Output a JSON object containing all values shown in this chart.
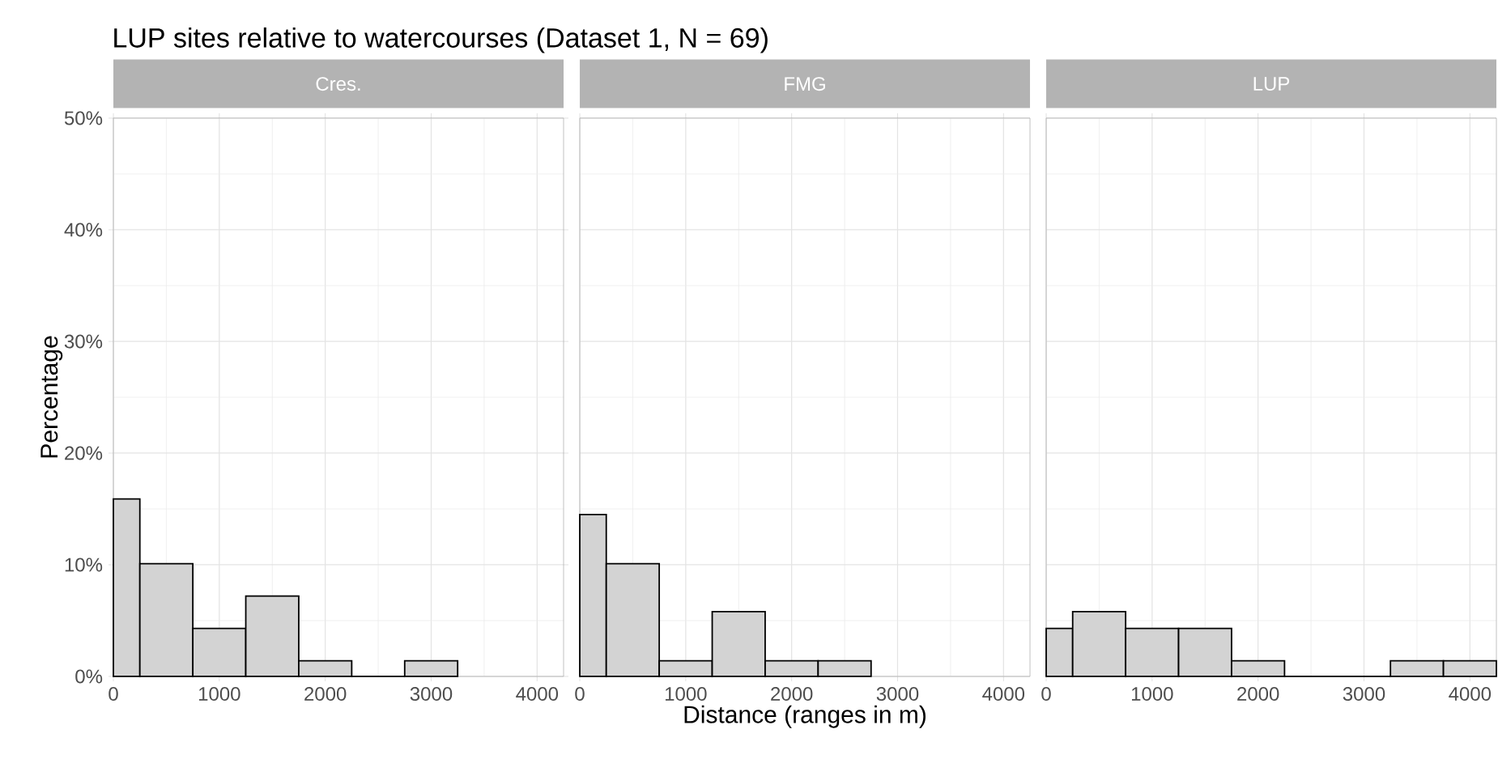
{
  "chart_data": [
    {
      "type": "histogram",
      "title": "LUP sites relative to watercourses (Dataset 1, N = 69)",
      "subtitle": "Cres.",
      "ylabel": "Percentage",
      "bins": [
        0,
        250,
        750,
        1250,
        1750,
        2250,
        2750,
        3250
      ],
      "values": [
        15.9,
        10.1,
        4.3,
        7.2,
        1.4,
        0,
        1.4
      ],
      "color": "#d3d3d3",
      "xlim": [
        0,
        4250
      ],
      "ylim": [
        0,
        50
      ],
      "xticks": [
        0,
        1000,
        2000,
        3000,
        4000
      ],
      "yticks": [
        {
          "value": 0,
          "label": "0%"
        },
        {
          "value": 10,
          "label": "10%"
        },
        {
          "value": 20,
          "label": "20%"
        },
        {
          "value": 30,
          "label": "30%"
        },
        {
          "value": 40,
          "label": "40%"
        },
        {
          "value": 50,
          "label": "50%"
        }
      ],
      "grid": true
    },
    {
      "type": "histogram",
      "subtitle": "FMG",
      "xlabel": "Distance (ranges in m)",
      "bins": [
        0,
        250,
        750,
        1250,
        1750,
        2250,
        2750
      ],
      "values": [
        14.5,
        10.1,
        1.4,
        5.8,
        1.4,
        1.4
      ],
      "color": "#d3d3d3",
      "xlim": [
        0,
        4250
      ],
      "ylim": [
        0,
        50
      ],
      "xticks": [
        0,
        1000,
        2000,
        3000,
        4000
      ],
      "yticks": [
        0,
        10,
        20,
        30,
        40,
        50
      ],
      "grid": true,
      "tick_labels": "x"
    },
    {
      "type": "histogram",
      "subtitle": "LUP",
      "bins": [
        0,
        250,
        750,
        1250,
        1750,
        2250,
        3250,
        3750,
        4250
      ],
      "values": [
        4.3,
        5.8,
        4.3,
        4.3,
        1.4,
        0,
        1.4,
        1.4
      ],
      "color": "#d3d3d3",
      "xlim": [
        0,
        4250
      ],
      "ylim": [
        0,
        50
      ],
      "xticks": [
        0,
        1000,
        2000,
        3000,
        4000
      ],
      "yticks": [
        0,
        10,
        20,
        30,
        40,
        50
      ],
      "grid": true,
      "tick_labels": "x"
    }
  ]
}
